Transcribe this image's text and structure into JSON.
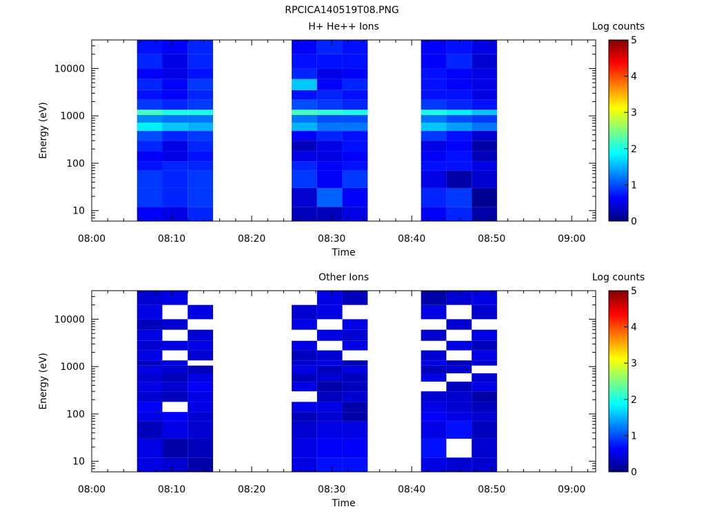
{
  "page_title": "RPCICA140519T08.PNG",
  "colorbar_palette": [
    "#00007f",
    "#0000ff",
    "#007fff",
    "#00ffff",
    "#7fff7f",
    "#ffff00",
    "#ff7f00",
    "#ff0000",
    "#7f0000"
  ],
  "chart_data": [
    {
      "type": "heatmap",
      "title": "H+ He++ Ions",
      "xlabel": "Time",
      "ylabel": "Energy (eV)",
      "x_ticks": [
        "08:00",
        "08:10",
        "08:20",
        "08:30",
        "08:40",
        "08:50",
        "09:00"
      ],
      "x_range": [
        "08:00",
        "09:03"
      ],
      "y_scale": "log",
      "y_ticks": [
        "10",
        "100",
        "1000",
        "10000"
      ],
      "y_range": [
        6,
        40000
      ],
      "colorbar": {
        "label": "Log counts",
        "range": [
          0,
          5
        ],
        "ticks": [
          "0",
          "1",
          "2",
          "3",
          "4",
          "5"
        ]
      },
      "time_bins": [
        {
          "start": "08:05:40",
          "end": "08:08:50"
        },
        {
          "start": "08:08:50",
          "end": "08:12:00"
        },
        {
          "start": "08:12:00",
          "end": "08:15:10"
        },
        {
          "start": "08:25:00",
          "end": "08:28:10"
        },
        {
          "start": "08:28:10",
          "end": "08:31:20"
        },
        {
          "start": "08:31:20",
          "end": "08:34:30"
        },
        {
          "start": "08:41:10",
          "end": "08:44:20"
        },
        {
          "start": "08:44:20",
          "end": "08:47:30"
        },
        {
          "start": "08:47:30",
          "end": "08:50:40"
        }
      ],
      "energy_bands": [
        {
          "low": 6,
          "high": 12,
          "values": [
            0.6,
            0.5,
            0.8,
            0.3,
            0.3,
            0.5,
            0.6,
            0.8,
            0.2
          ]
        },
        {
          "low": 12,
          "high": 30,
          "values": [
            0.9,
            0.8,
            0.9,
            0.4,
            1.1,
            0.6,
            0.8,
            0.9,
            0.1
          ]
        },
        {
          "low": 30,
          "high": 70,
          "values": [
            0.9,
            0.8,
            0.9,
            0.9,
            0.6,
            0.9,
            0.5,
            0.2,
            0.4
          ]
        },
        {
          "low": 70,
          "high": 110,
          "values": [
            0.7,
            0.8,
            0.8,
            0.8,
            0.6,
            0.7,
            0.7,
            0.7,
            0.5
          ]
        },
        {
          "low": 110,
          "high": 180,
          "values": [
            0.6,
            0.5,
            0.7,
            0.5,
            0.5,
            0.6,
            0.6,
            0.7,
            0.3
          ]
        },
        {
          "low": 180,
          "high": 300,
          "values": [
            0.8,
            0.5,
            0.8,
            0.3,
            0.5,
            0.7,
            0.5,
            0.6,
            0.2
          ]
        },
        {
          "low": 300,
          "high": 480,
          "values": [
            1.0,
            0.8,
            0.9,
            0.6,
            0.8,
            0.7,
            0.9,
            0.7,
            0.4
          ]
        },
        {
          "low": 480,
          "high": 720,
          "values": [
            1.8,
            1.6,
            1.5,
            1.5,
            1.2,
            1.2,
            1.6,
            1.4,
            1.2
          ]
        },
        {
          "low": 720,
          "high": 1050,
          "values": [
            1.3,
            1.2,
            1.2,
            1.2,
            1.0,
            1.0,
            1.2,
            1.0,
            0.9
          ]
        },
        {
          "low": 1050,
          "high": 1350,
          "values": [
            2.2,
            2.0,
            2.0,
            2.2,
            2.1,
            2.0,
            2.0,
            1.8,
            1.6
          ]
        },
        {
          "low": 1350,
          "high": 2200,
          "values": [
            0.9,
            0.8,
            0.9,
            1.0,
            0.9,
            0.8,
            0.9,
            0.8,
            0.7
          ]
        },
        {
          "low": 2200,
          "high": 3500,
          "values": [
            0.7,
            0.6,
            0.8,
            0.7,
            0.8,
            0.7,
            0.7,
            0.7,
            0.5
          ]
        },
        {
          "low": 3500,
          "high": 6000,
          "values": [
            0.8,
            0.6,
            0.9,
            1.6,
            0.6,
            0.8,
            0.7,
            0.6,
            0.5
          ]
        },
        {
          "low": 6000,
          "high": 10000,
          "values": [
            0.6,
            0.5,
            0.7,
            0.8,
            0.5,
            0.6,
            0.7,
            0.6,
            0.5
          ]
        },
        {
          "low": 10000,
          "high": 20000,
          "values": [
            0.8,
            0.5,
            0.8,
            0.7,
            0.7,
            0.7,
            0.6,
            0.8,
            0.4
          ]
        },
        {
          "low": 20000,
          "high": 40000,
          "values": [
            0.7,
            0.6,
            0.8,
            0.6,
            0.8,
            0.7,
            0.6,
            0.7,
            0.5
          ]
        }
      ]
    },
    {
      "type": "heatmap",
      "title": "Other Ions",
      "xlabel": "Time",
      "ylabel": "Energy (eV)",
      "x_ticks": [
        "08:00",
        "08:10",
        "08:20",
        "08:30",
        "08:40",
        "08:50",
        "09:00"
      ],
      "x_range": [
        "08:00",
        "09:03"
      ],
      "y_scale": "log",
      "y_ticks": [
        "10",
        "100",
        "1000",
        "10000"
      ],
      "y_range": [
        6,
        40000
      ],
      "colorbar": {
        "label": "Log counts",
        "range": [
          0,
          5
        ],
        "ticks": [
          "0",
          "1",
          "2",
          "3",
          "4",
          "5"
        ]
      },
      "time_bins": [
        {
          "start": "08:05:40",
          "end": "08:08:50"
        },
        {
          "start": "08:08:50",
          "end": "08:12:00"
        },
        {
          "start": "08:12:00",
          "end": "08:15:10"
        },
        {
          "start": "08:25:00",
          "end": "08:28:10"
        },
        {
          "start": "08:28:10",
          "end": "08:31:20"
        },
        {
          "start": "08:31:20",
          "end": "08:34:30"
        },
        {
          "start": "08:41:10",
          "end": "08:44:20"
        },
        {
          "start": "08:44:20",
          "end": "08:47:30"
        },
        {
          "start": "08:47:30",
          "end": "08:50:40"
        }
      ],
      "energy_bands": [
        {
          "low": 6,
          "high": 12,
          "values": [
            0.5,
            0.4,
            0.2,
            0.5,
            0.7,
            0.7,
            0.5,
            0.4,
            0.4
          ]
        },
        {
          "low": 12,
          "high": 30,
          "values": [
            0.5,
            0.2,
            0.3,
            0.5,
            0.6,
            0.6,
            0.7,
            null,
            0.4
          ]
        },
        {
          "low": 30,
          "high": 70,
          "values": [
            0.3,
            0.5,
            0.4,
            0.4,
            0.5,
            0.5,
            0.5,
            0.7,
            0.3
          ]
        },
        {
          "low": 70,
          "high": 110,
          "values": [
            0.5,
            0.6,
            0.4,
            0.3,
            0.4,
            0.2,
            0.6,
            0.5,
            0.4
          ]
        },
        {
          "low": 110,
          "high": 180,
          "values": [
            0.6,
            null,
            0.5,
            0.5,
            0.5,
            0.2,
            0.5,
            0.4,
            0.3
          ]
        },
        {
          "low": 180,
          "high": 300,
          "values": [
            0.4,
            0.3,
            0.5,
            null,
            0.3,
            0.4,
            0.4,
            0.4,
            0.2
          ]
        },
        {
          "low": 300,
          "high": 480,
          "values": [
            0.5,
            0.4,
            0.6,
            0.5,
            0.2,
            0.3,
            null,
            0.3,
            0.5
          ]
        },
        {
          "low": 480,
          "high": 720,
          "values": [
            0.4,
            0.3,
            0.5,
            0.3,
            0.4,
            0.3,
            0.5,
            null,
            0.4
          ]
        },
        {
          "low": 720,
          "high": 1050,
          "values": [
            0.5,
            0.4,
            0.3,
            0.5,
            0.3,
            0.5,
            0.3,
            0.4,
            null
          ]
        },
        {
          "low": 1050,
          "high": 1350,
          "values": [
            0.3,
            0.5,
            null,
            0.4,
            0.5,
            0.3,
            0.5,
            0.3,
            0.4
          ]
        },
        {
          "low": 1350,
          "high": 2200,
          "values": [
            0.5,
            null,
            0.4,
            0.3,
            0.4,
            null,
            0.4,
            null,
            0.5
          ]
        },
        {
          "low": 2200,
          "high": 3500,
          "values": [
            0.4,
            0.5,
            0.5,
            0.5,
            null,
            0.5,
            null,
            0.5,
            0.3
          ]
        },
        {
          "low": 3500,
          "high": 6000,
          "values": [
            0.5,
            null,
            0.4,
            null,
            0.5,
            0.4,
            0.4,
            null,
            0.5
          ]
        },
        {
          "low": 6000,
          "high": 10000,
          "values": [
            0.3,
            0.4,
            null,
            0.5,
            null,
            0.5,
            null,
            0.4,
            null
          ]
        },
        {
          "low": 10000,
          "high": 20000,
          "values": [
            0.5,
            null,
            0.5,
            0.4,
            0.5,
            null,
            0.5,
            null,
            0.4
          ]
        },
        {
          "low": 20000,
          "high": 40000,
          "values": [
            0.4,
            0.5,
            null,
            null,
            0.5,
            0.3,
            0.2,
            0.4,
            0.5
          ]
        }
      ]
    }
  ]
}
